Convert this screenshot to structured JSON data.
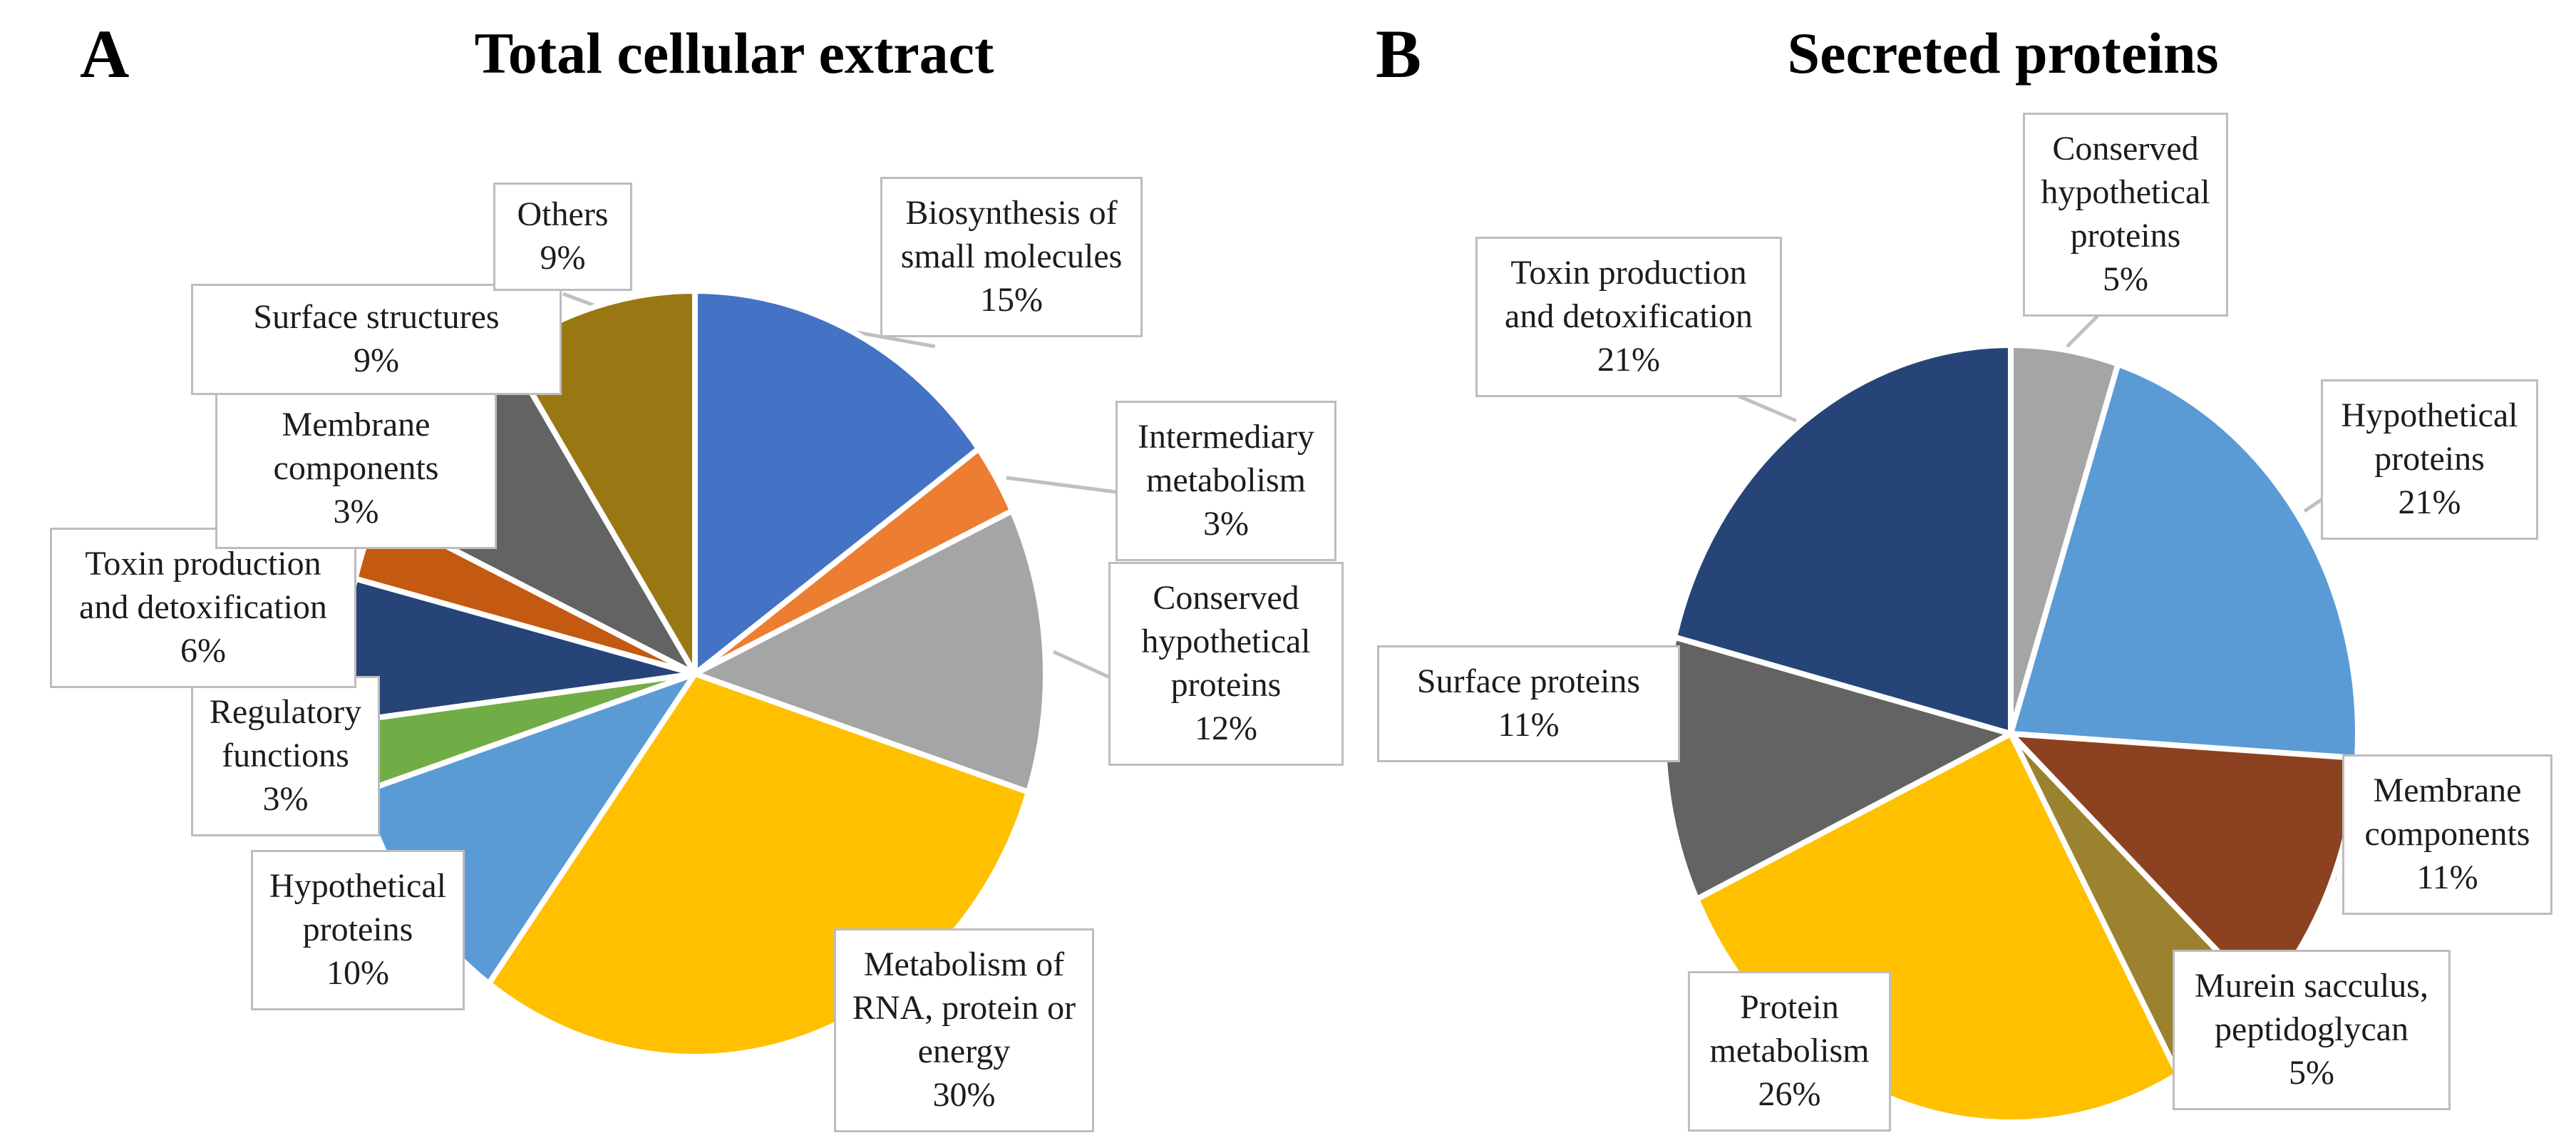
{
  "figure": {
    "background": "#ffffff",
    "text_color": "#1c1c1c",
    "callout_border_color": "#BDBDBD",
    "leader_line_color": "#C0C0C0",
    "slice_outline_color": "#ffffff",
    "panels": [
      {
        "letter": "A",
        "title": "Total cellular extract"
      },
      {
        "letter": "B",
        "title": "Secreted proteins"
      }
    ]
  },
  "chart_data": [
    {
      "type": "pie",
      "panel": "A",
      "title": "Total cellular extract",
      "start_angle_deg": 0,
      "direction": "clockwise",
      "legend_position": "callouts",
      "slices": [
        {
          "label": "Biosynthesis of small molecules",
          "pct": "15%",
          "value": 15,
          "color": "#4472C4"
        },
        {
          "label": "Intermediary metabolism",
          "pct": "3%",
          "value": 3,
          "color": "#ED7D31"
        },
        {
          "label": "Conserved hypothetical proteins",
          "pct": "12%",
          "value": 12,
          "color": "#A5A5A5"
        },
        {
          "label": "Metabolism of RNA, protein or energy",
          "pct": "30%",
          "value": 30,
          "color": "#FFC000"
        },
        {
          "label": "Hypothetical proteins",
          "pct": "10%",
          "value": 10,
          "color": "#5B9BD5"
        },
        {
          "label": "Regulatory functions",
          "pct": "3%",
          "value": 3,
          "color": "#70AD47"
        },
        {
          "label": "Toxin production and detoxification",
          "pct": "6%",
          "value": 6,
          "color": "#264478"
        },
        {
          "label": "Membrane components",
          "pct": "3%",
          "value": 3,
          "color": "#C45911"
        },
        {
          "label": "Surface structures",
          "pct": "9%",
          "value": 9,
          "color": "#636363"
        },
        {
          "label": "Others",
          "pct": "9%",
          "value": 9,
          "color": "#997814"
        }
      ]
    },
    {
      "type": "pie",
      "panel": "B",
      "title": "Secreted proteins",
      "start_angle_deg": 0,
      "direction": "clockwise",
      "legend_position": "callouts",
      "slices": [
        {
          "label": "Conserved hypothetical proteins",
          "pct": "5%",
          "value": 5,
          "color": "#A5A5A5"
        },
        {
          "label": "Hypothetical proteins",
          "pct": "21%",
          "value": 21,
          "color": "#5B9BD5"
        },
        {
          "label": "Membrane components",
          "pct": "11%",
          "value": 11,
          "color": "#8C4220"
        },
        {
          "label": "Murein sacculus, peptidoglycan",
          "pct": "5%",
          "value": 5,
          "color": "#9B822F"
        },
        {
          "label": "Protein metabolism",
          "pct": "26%",
          "value": 26,
          "color": "#FFC000"
        },
        {
          "label": "Surface proteins",
          "pct": "11%",
          "value": 11,
          "color": "#636363"
        },
        {
          "label": "Toxin production and detoxification",
          "pct": "21%",
          "value": 21,
          "color": "#264478"
        }
      ]
    }
  ]
}
